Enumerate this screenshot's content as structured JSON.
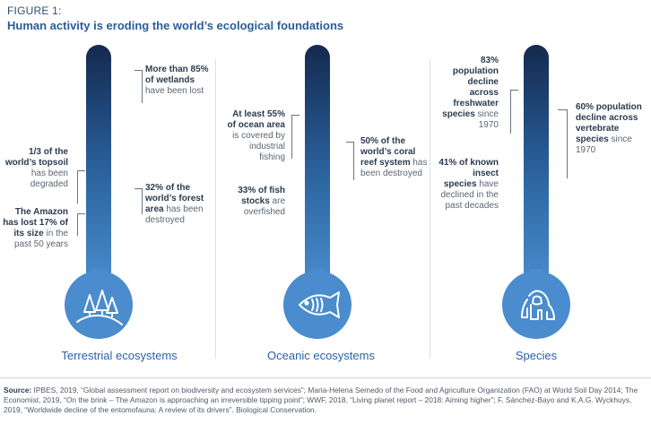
{
  "figure_label": "FIGURE 1:",
  "title": "Human activity is eroding the world’s ecological foundations",
  "columns": [
    {
      "category": "Terrestrial ecosystems",
      "icon": "trees-icon",
      "annotations": [
        {
          "bold": "More than 85% of wetlands",
          "normal": "have been lost"
        },
        {
          "bold": "1/3 of the world’s topsoil",
          "normal": "has been degraded"
        },
        {
          "bold": "32% of the world’s forest area",
          "normal": "has been destroyed"
        },
        {
          "bold": "The Amazon has lost 17% of its size",
          "normal": "in the past 50 years"
        }
      ]
    },
    {
      "category": "Oceanic ecosystems",
      "icon": "fish-icon",
      "annotations": [
        {
          "bold": "At least 55% of ocean area",
          "normal": "is covered by industrial fishing"
        },
        {
          "bold": "50% of the world’s coral reef system",
          "normal": "has been destroyed"
        },
        {
          "bold": "33% of fish stocks",
          "normal": "are overfished"
        }
      ]
    },
    {
      "category": "Species",
      "icon": "gorilla-icon",
      "annotations": [
        {
          "bold": "83% population decline across freshwater species",
          "normal": "since 1970"
        },
        {
          "bold": "60% population decline across vertebrate species",
          "normal": "since 1970"
        },
        {
          "bold": "41% of known insect species",
          "normal": "have declined in the past decades"
        }
      ]
    }
  ],
  "source": {
    "label": "Source:",
    "text": "IPBES, 2019, “Global assessment report on biodiversity and ecosystem services”; Maria-Helena Semedo of the Food and Agriculture Organization (FAO) at World Soil Day 2014; The Economist, 2019, “On the brink – The Amazon is approaching an irreversible tipping point”; WWF, 2018, “Living planet report – 2018: Aiming higher”; F. Sánchez-Bayo and K.A.G. Wyckhuys, 2019, “Worldwide decline of the entomofauna: A review of its drivers”. Biological Conservation."
  },
  "colors": {
    "title": "#2a5d97",
    "accent": "#4a8ccd",
    "thermometer_top": "#152a4d",
    "category_text": "#2a62a6"
  }
}
